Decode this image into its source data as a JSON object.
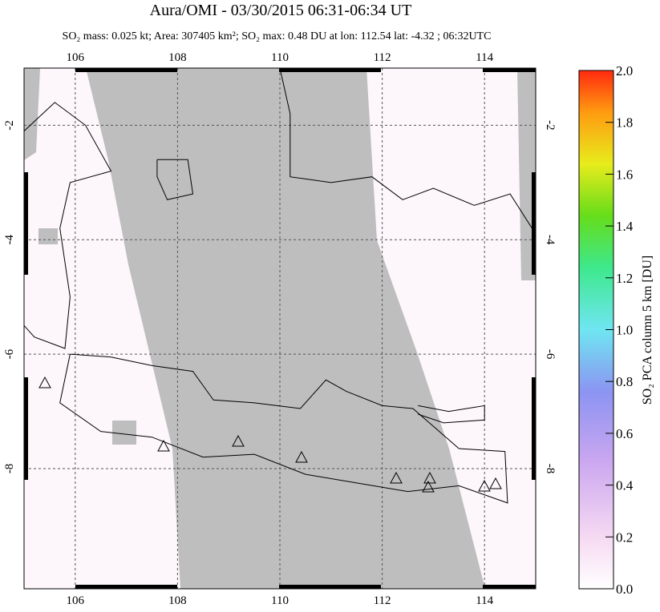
{
  "chart_data": {
    "type": "map",
    "title": "Aura/OMI - 03/30/2015 06:31-06:34 UT",
    "subtitle": "SO₂ mass: 0.025 kt; Area: 307405 km²; SO₂ max: 0.48 DU at lon: 112.54 lat: -4.32 ; 06:32UTC",
    "xlim": [
      105,
      115
    ],
    "xticks": [
      106,
      108,
      110,
      112,
      114
    ],
    "ylim": [
      -10.1,
      -1
    ],
    "yticks": [
      -2,
      -4,
      -6,
      -8
    ],
    "grid": true,
    "colorbar": {
      "label": "SO₂ PCA column 5 km [DU]",
      "lim": [
        0,
        2
      ],
      "ticks": [
        {
          "value": 0,
          "label": "0.0"
        },
        0.2,
        0.4,
        0.6,
        0.8,
        {
          "value": 1,
          "label": "1.0"
        },
        1.2,
        1.4,
        1.6,
        1.8,
        {
          "value": 2,
          "label": "2.0"
        }
      ]
    }
  }
}
